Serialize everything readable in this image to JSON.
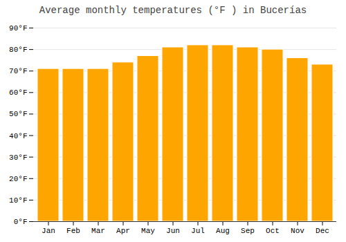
{
  "chart_data": {
    "type": "bar",
    "title": "Average monthly temperatures (°F ) in Bucerías",
    "categories": [
      "Jan",
      "Feb",
      "Mar",
      "Apr",
      "May",
      "Jun",
      "Jul",
      "Aug",
      "Sep",
      "Oct",
      "Nov",
      "Dec"
    ],
    "values": [
      71,
      71,
      71,
      74,
      77,
      81,
      82,
      82,
      81,
      80,
      76,
      73
    ],
    "color": "#FFA500",
    "ylim": [
      0,
      90
    ],
    "yticks": [
      {
        "value": 0,
        "label": "0°F"
      },
      {
        "value": 10,
        "label": "10°F"
      },
      {
        "value": 20,
        "label": "20°F"
      },
      {
        "value": 30,
        "label": "30°F"
      },
      {
        "value": 40,
        "label": "40°F"
      },
      {
        "value": 50,
        "label": "50°F"
      },
      {
        "value": 60,
        "label": "60°F"
      },
      {
        "value": 70,
        "label": "70°F"
      },
      {
        "value": 80,
        "label": "80°F"
      },
      {
        "value": 90,
        "label": "90°F"
      }
    ],
    "grid": true
  }
}
